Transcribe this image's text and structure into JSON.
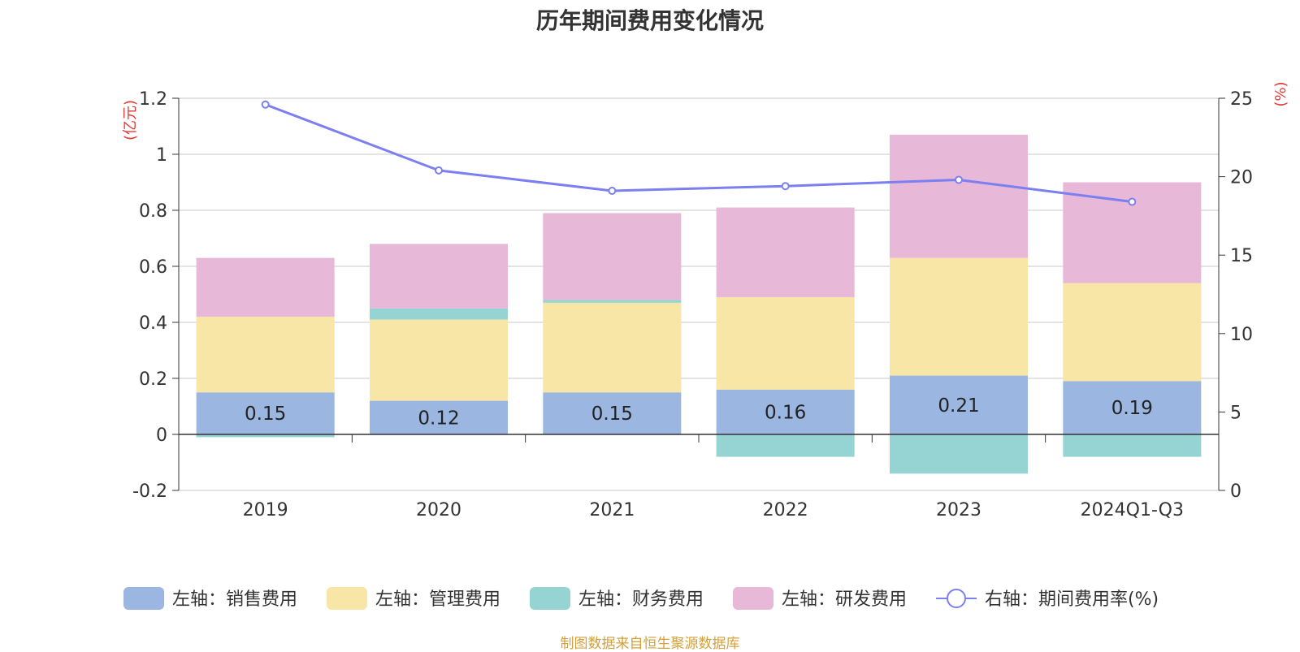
{
  "page": {
    "title": "历年期间费用变化情况",
    "source_note": "制图数据来自恒生聚源数据库"
  },
  "chart_data": {
    "type": "bar",
    "stacked": true,
    "title": "历年期间费用变化情况",
    "categories": [
      "2019",
      "2020",
      "2021",
      "2022",
      "2023",
      "2024Q1-Q3"
    ],
    "left_axis": {
      "unit_label": "(亿元)",
      "ylim": [
        -0.2,
        1.2
      ],
      "ticks": [
        -0.2,
        0,
        0.2,
        0.4,
        0.6,
        0.8,
        1,
        1.2
      ]
    },
    "right_axis": {
      "unit_label": "(%)",
      "ylim": [
        0,
        25
      ],
      "ticks": [
        0,
        5,
        10,
        15,
        20,
        25
      ]
    },
    "grid": true,
    "legend_position": "bottom",
    "series": [
      {
        "name": "左轴：销售费用",
        "axis": "left",
        "type": "bar",
        "color": "#9bb6e0",
        "values": [
          0.15,
          0.12,
          0.15,
          0.16,
          0.21,
          0.19
        ],
        "data_labels": [
          "0.15",
          "0.12",
          "0.15",
          "0.16",
          "0.21",
          "0.19"
        ]
      },
      {
        "name": "左轴：管理费用",
        "axis": "left",
        "type": "bar",
        "color": "#f8e6a6",
        "values": [
          0.27,
          0.29,
          0.32,
          0.33,
          0.42,
          0.35
        ]
      },
      {
        "name": "左轴：财务费用",
        "axis": "left",
        "type": "bar",
        "color": "#96d4d4",
        "values": [
          -0.01,
          0.04,
          0.01,
          -0.08,
          -0.14,
          -0.08
        ]
      },
      {
        "name": "左轴：研发费用",
        "axis": "left",
        "type": "bar",
        "color": "#e8b8d8",
        "values": [
          0.21,
          0.23,
          0.31,
          0.32,
          0.44,
          0.36
        ]
      },
      {
        "name": "右轴：期间费用率(%)",
        "axis": "right",
        "type": "line",
        "color": "#7b7ff0",
        "values": [
          24.6,
          20.4,
          19.1,
          19.4,
          19.8,
          18.4
        ]
      }
    ]
  }
}
